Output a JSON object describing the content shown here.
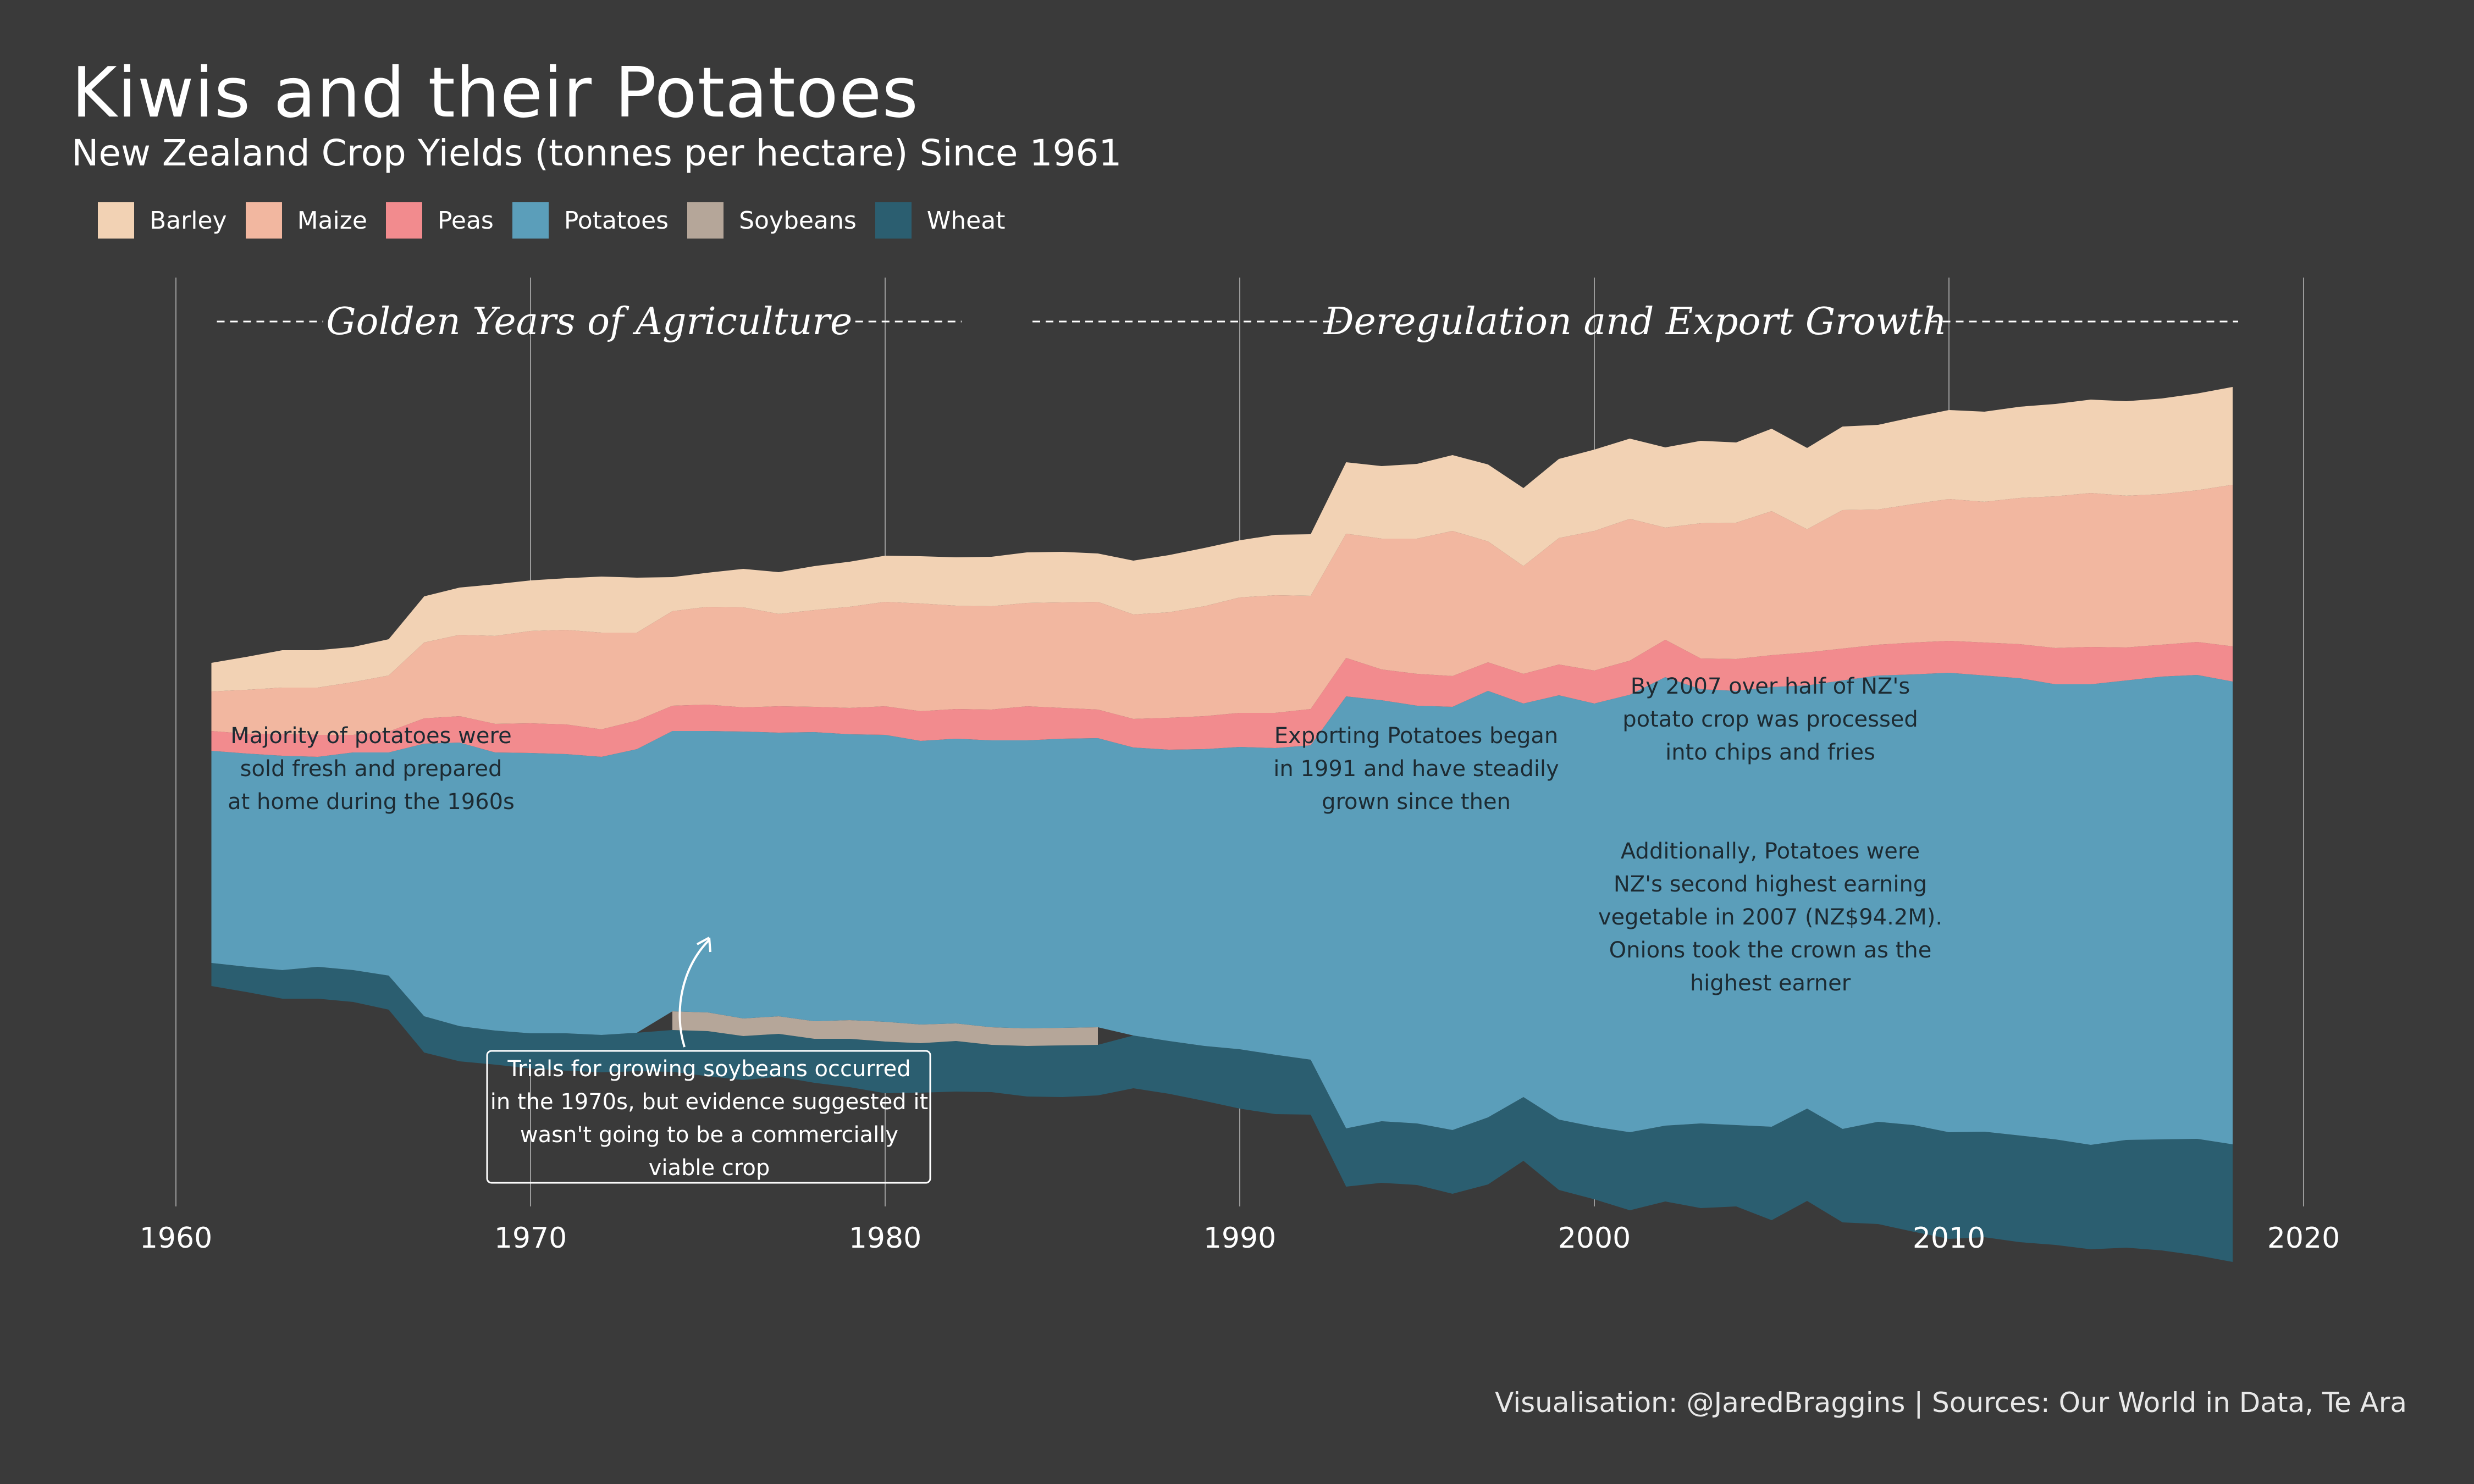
{
  "title": "Kiwis and their Potatoes",
  "subtitle": "New Zealand Crop Yields (tonnes per hectare) Since 1961",
  "caption": "Visualisation: @JaredBraggins  |  Sources: Our World in Data, Te Ara",
  "colors": {
    "background": "#3a3a3a",
    "Barley": "#f2d2b4",
    "Maize": "#f2b7a0",
    "Peas": "#f28b8e",
    "Potatoes": "#5b9eba",
    "Soybeans": "#b5a699",
    "Wheat": "#2b5e70"
  },
  "legend": [
    {
      "name": "Barley",
      "color": "#f2d2b4"
    },
    {
      "name": "Maize",
      "color": "#f2b7a0"
    },
    {
      "name": "Peas",
      "color": "#f28b8e"
    },
    {
      "name": "Potatoes",
      "color": "#5b9eba"
    },
    {
      "name": "Soybeans",
      "color": "#b5a699"
    },
    {
      "name": "Wheat",
      "color": "#2b5e70"
    }
  ],
  "eras": [
    {
      "label": "Golden Years of Agriculture",
      "start": 1961,
      "end": 1982
    },
    {
      "label": "Deregulation and Export Growth",
      "start": 1984,
      "end": 2018
    }
  ],
  "annotations": [
    {
      "id": "potatoes-1960s",
      "lines": [
        "Majority of potatoes were",
        "sold fresh and prepared",
        "at home during the 1960s"
      ]
    },
    {
      "id": "export-1991",
      "lines": [
        "Exporting Potatoes began",
        "in 1991 and have steadily",
        "grown since then"
      ]
    },
    {
      "id": "chips-2007",
      "lines": [
        "By 2007 over half of NZ's",
        "potato crop was processed",
        "into chips and fries"
      ]
    },
    {
      "id": "earning-2007",
      "lines": [
        "Additionally, Potatoes were",
        "NZ's second highest earning",
        "vegetable in 2007 (NZ$94.2M).",
        "Onions took the crown as the",
        "highest earner"
      ]
    },
    {
      "id": "soybeans-trials",
      "lines": [
        "Trials for growing soybeans occurred",
        "in the 1970s, but evidence suggested it",
        "wasn't going to be a commercially",
        "viable crop"
      ]
    }
  ],
  "chart_data": {
    "type": "area",
    "subtype": "streamgraph",
    "title": "Kiwis and their Potatoes",
    "subtitle": "New Zealand Crop Yields (tonnes per hectare) Since 1961",
    "x_ticks": [
      1960,
      1970,
      1980,
      1990,
      2000,
      2010,
      2020
    ],
    "xlim": [
      1960,
      2020
    ],
    "grid": "vertical",
    "legend_position": "top-left",
    "x": [
      1961,
      1962,
      1963,
      1964,
      1965,
      1966,
      1967,
      1968,
      1969,
      1970,
      1971,
      1972,
      1973,
      1974,
      1975,
      1976,
      1977,
      1978,
      1979,
      1980,
      1981,
      1982,
      1983,
      1984,
      1985,
      1986,
      1987,
      1988,
      1989,
      1990,
      1991,
      1992,
      1993,
      1994,
      1995,
      1996,
      1997,
      1998,
      1999,
      2000,
      2001,
      2002,
      2003,
      2004,
      2005,
      2006,
      2007,
      2008,
      2009,
      2010,
      2011,
      2012,
      2013,
      2014,
      2015,
      2016,
      2017,
      2018
    ],
    "series": [
      {
        "name": "Wheat",
        "values": [
          2.1,
          2.3,
          2.6,
          2.9,
          2.9,
          3.1,
          3.3,
          3.2,
          3.1,
          3.2,
          3.4,
          3.4,
          3.5,
          3.8,
          4.1,
          4.0,
          3.9,
          4.0,
          4.4,
          4.7,
          4.5,
          4.6,
          4.3,
          4.6,
          4.7,
          4.6,
          4.8,
          4.8,
          5.0,
          5.4,
          5.4,
          5.0,
          5.3,
          5.6,
          5.6,
          5.8,
          6.1,
          5.8,
          6.4,
          6.6,
          7.1,
          6.9,
          7.7,
          7.4,
          8.5,
          8.4,
          8.5,
          9.3,
          9.7,
          9.7,
          9.6,
          9.7,
          9.6,
          9.5,
          9.8,
          10.1,
          10.6,
          10.7
        ]
      },
      {
        "name": "Soybeans",
        "values": [
          null,
          null,
          null,
          null,
          null,
          null,
          null,
          null,
          null,
          null,
          null,
          null,
          null,
          1.7,
          1.7,
          1.6,
          1.6,
          1.6,
          1.7,
          1.8,
          1.7,
          1.6,
          1.6,
          1.6,
          1.6,
          1.6,
          null,
          null,
          null,
          null,
          null,
          null,
          null,
          null,
          null,
          null,
          null,
          null,
          null,
          null,
          null,
          null,
          null,
          null,
          null,
          null,
          null,
          null,
          null,
          null,
          null,
          null,
          null,
          null,
          null,
          null,
          null,
          null
        ]
      },
      {
        "name": "Potatoes",
        "values": [
          19.3,
          19.4,
          19.5,
          19.1,
          19.8,
          20.3,
          24.8,
          25.8,
          25.3,
          25.5,
          25.4,
          25.3,
          25.8,
          25.5,
          25.6,
          26.1,
          25.8,
          26.3,
          26.0,
          26.1,
          25.8,
          25.9,
          26.1,
          26.2,
          26.3,
          26.3,
          26.2,
          26.5,
          27.0,
          27.5,
          27.9,
          28.6,
          39.3,
          38.3,
          38.0,
          38.5,
          38.8,
          35.8,
          38.6,
          38.5,
          39.8,
          40.8,
          39.5,
          39.5,
          40.0,
          38.5,
          40.8,
          40.6,
          41.0,
          41.8,
          41.5,
          41.6,
          41.4,
          41.9,
          41.8,
          42.1,
          42.2,
          42.1
        ]
      },
      {
        "name": "Peas",
        "values": [
          1.8,
          1.8,
          2.0,
          2.0,
          1.6,
          1.9,
          2.3,
          2.4,
          2.6,
          2.7,
          2.7,
          2.5,
          2.6,
          2.3,
          2.4,
          2.2,
          2.4,
          2.3,
          2.4,
          2.6,
          2.7,
          2.7,
          2.8,
          3.1,
          2.8,
          2.6,
          2.6,
          2.9,
          3.0,
          3.1,
          3.2,
          3.3,
          3.5,
          2.8,
          2.9,
          2.8,
          2.6,
          2.7,
          2.8,
          3.0,
          3.1,
          3.4,
          2.8,
          2.9,
          2.9,
          3.0,
          2.9,
          2.8,
          2.9,
          2.9,
          3.0,
          3.1,
          3.3,
          3.4,
          3.0,
          2.9,
          3.0,
          3.2
        ]
      },
      {
        "name": "Maize",
        "values": [
          3.6,
          4.0,
          4.2,
          4.3,
          4.8,
          5.1,
          6.9,
          7.4,
          8.0,
          8.4,
          8.6,
          8.8,
          8.0,
          8.6,
          8.9,
          9.1,
          8.4,
          8.8,
          9.2,
          9.5,
          9.8,
          9.4,
          9.4,
          9.4,
          9.6,
          9.8,
          9.5,
          9.6,
          10.0,
          10.5,
          10.7,
          10.3,
          11.3,
          11.9,
          12.3,
          13.2,
          11.0,
          9.8,
          11.5,
          12.7,
          12.9,
          10.2,
          12.3,
          12.4,
          13.1,
          11.2,
          12.6,
          12.3,
          12.6,
          12.9,
          12.8,
          13.3,
          13.8,
          14.0,
          13.8,
          13.7,
          13.8,
          14.7
        ]
      },
      {
        "name": "Barley",
        "values": [
          2.6,
          3.0,
          3.4,
          3.4,
          3.2,
          3.3,
          4.2,
          4.3,
          4.7,
          4.6,
          4.7,
          5.1,
          5.0,
          3.1,
          3.1,
          3.5,
          3.8,
          4.0,
          4.1,
          4.2,
          4.3,
          4.4,
          4.5,
          4.6,
          4.6,
          4.4,
          4.9,
          5.2,
          5.3,
          5.2,
          5.5,
          5.6,
          6.5,
          6.6,
          6.8,
          6.9,
          7.0,
          7.1,
          7.2,
          7.4,
          7.3,
          7.3,
          7.5,
          7.3,
          7.5,
          7.4,
          7.6,
          7.7,
          7.9,
          8.1,
          8.2,
          8.3,
          8.4,
          8.5,
          8.6,
          8.7,
          8.8,
          8.9
        ]
      }
    ]
  }
}
